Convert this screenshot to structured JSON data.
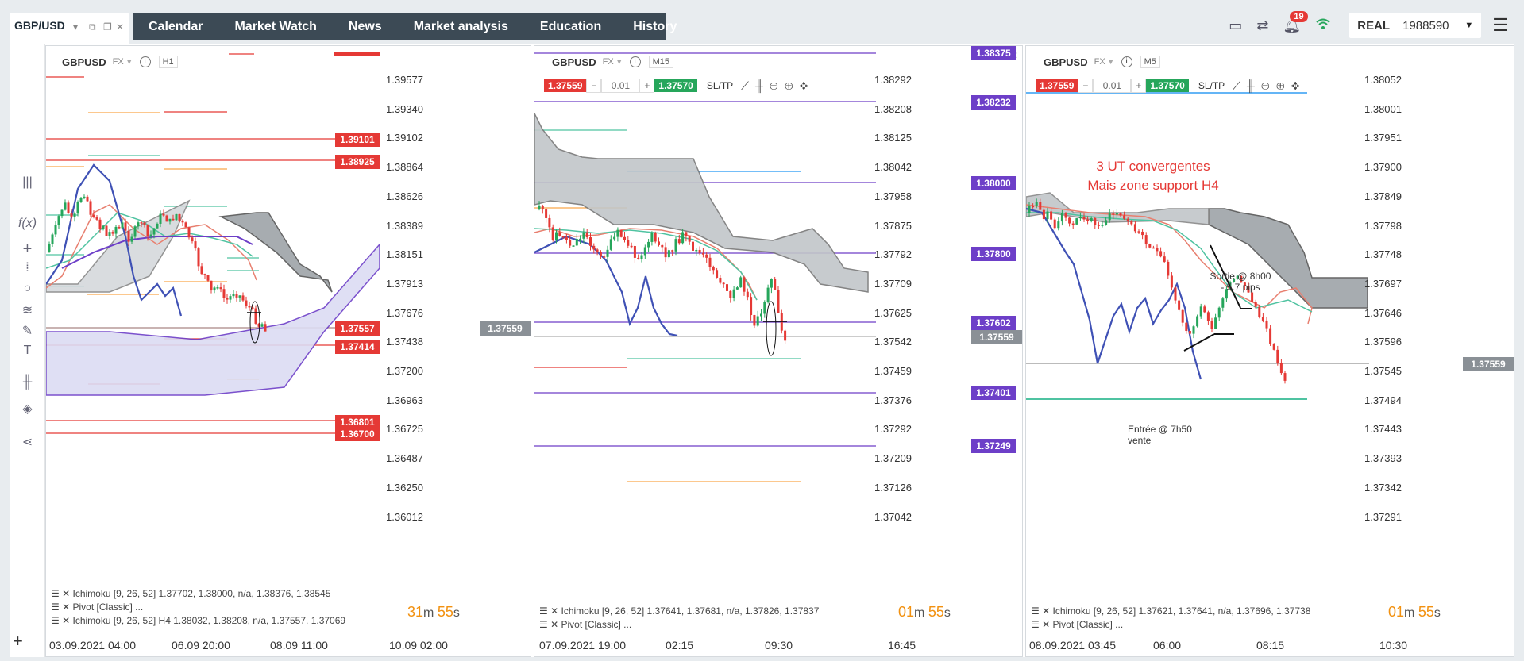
{
  "topbar": {
    "symbol_tab": "GBP/USD",
    "nav": [
      "Calendar",
      "Market Watch",
      "News",
      "Market analysis",
      "Education",
      "History"
    ],
    "notifications": "19",
    "account_type": "REAL",
    "account_number": "1988590"
  },
  "colors": {
    "sell": "#e53935",
    "buy": "#26a65b",
    "level_purple": "#6d3fc8",
    "timer": "#f29110",
    "nav_bg": "#3c4a55"
  },
  "icons": [
    "monitor-icon",
    "exchange-icon",
    "bell-icon",
    "wifi-icon",
    "hamburger-icon"
  ],
  "panels": [
    {
      "symbol": "GBPUSD",
      "market": "FX",
      "timeframe": "H1",
      "price_ticks": [
        "1.39577",
        "1.39340",
        "1.39102",
        "1.38864",
        "1.38626",
        "1.38389",
        "1.38151",
        "1.37913",
        "1.37676",
        "1.37438",
        "1.37200",
        "1.36963",
        "1.36725",
        "1.36487",
        "1.36250",
        "1.36012"
      ],
      "time_ticks": [
        "03.09.2021 04:00",
        "06.09 20:00",
        "08.09 11:00",
        "10.09 02:00"
      ],
      "level_labels": [
        "1.39101",
        "1.38925",
        "1.37557",
        "1.37414",
        "1.36801",
        "1.36700"
      ],
      "current_price": "1.37559",
      "legend": [
        "Ichimoku [9, 26, 52] 1.37702, 1.38000, n/a, 1.38376, 1.38545",
        "Pivot [Classic] ...",
        "Ichimoku [9, 26, 52] H4 1.38032, 1.38208, n/a, 1.37557, 1.37069"
      ],
      "timer": {
        "minutes": "31",
        "seconds": "55"
      }
    },
    {
      "symbol": "GBPUSD",
      "market": "FX",
      "timeframe": "M15",
      "sell_price": "1.37559",
      "amount": "0.01",
      "buy_price": "1.37570",
      "sltp": "SL/TP",
      "price_ticks": [
        "1.38292",
        "1.38208",
        "1.38125",
        "1.38042",
        "1.37958",
        "1.37875",
        "1.37792",
        "1.37709",
        "1.37625",
        "1.37542",
        "1.37459",
        "1.37376",
        "1.37292",
        "1.37209",
        "1.37126",
        "1.37042"
      ],
      "time_ticks": [
        "07.09.2021 19:00",
        "02:15",
        "09:30",
        "16:45"
      ],
      "level_labels": [
        "1.38375",
        "1.38232",
        "1.38000",
        "1.37800",
        "1.37602",
        "1.37401",
        "1.37249"
      ],
      "current_price": "1.37559",
      "legend": [
        "Ichimoku [9, 26, 52] 1.37641, 1.37681, n/a, 1.37826, 1.37837",
        "Pivot [Classic] ..."
      ],
      "timer": {
        "minutes": "01",
        "seconds": "55"
      }
    },
    {
      "symbol": "GBPUSD",
      "market": "FX",
      "timeframe": "M5",
      "sell_price": "1.37559",
      "amount": "0.01",
      "buy_price": "1.37570",
      "sltp": "SL/TP",
      "price_ticks": [
        "1.38052",
        "1.38001",
        "1.37951",
        "1.37900",
        "1.37849",
        "1.37798",
        "1.37748",
        "1.37697",
        "1.37646",
        "1.37596",
        "1.37545",
        "1.37494",
        "1.37443",
        "1.37393",
        "1.37342",
        "1.37291"
      ],
      "time_ticks": [
        "08.09.2021 03:45",
        "06:00",
        "08:15",
        "10:30"
      ],
      "current_price": "1.37559",
      "annotations": {
        "red_line1": "3 UT convergentes",
        "red_line2": "Mais zone support H4",
        "exit_line1": "Sortie @ 8h00",
        "exit_line2": "- 5.7 pips",
        "entry_line1": "Entrée @ 7h50",
        "entry_line2": "vente"
      },
      "legend": [
        "Ichimoku [9, 26, 52] 1.37621, 1.37641, n/a, 1.37696, 1.37738",
        "Pivot [Classic] ..."
      ],
      "timer": {
        "minutes": "01",
        "seconds": "55"
      }
    }
  ]
}
